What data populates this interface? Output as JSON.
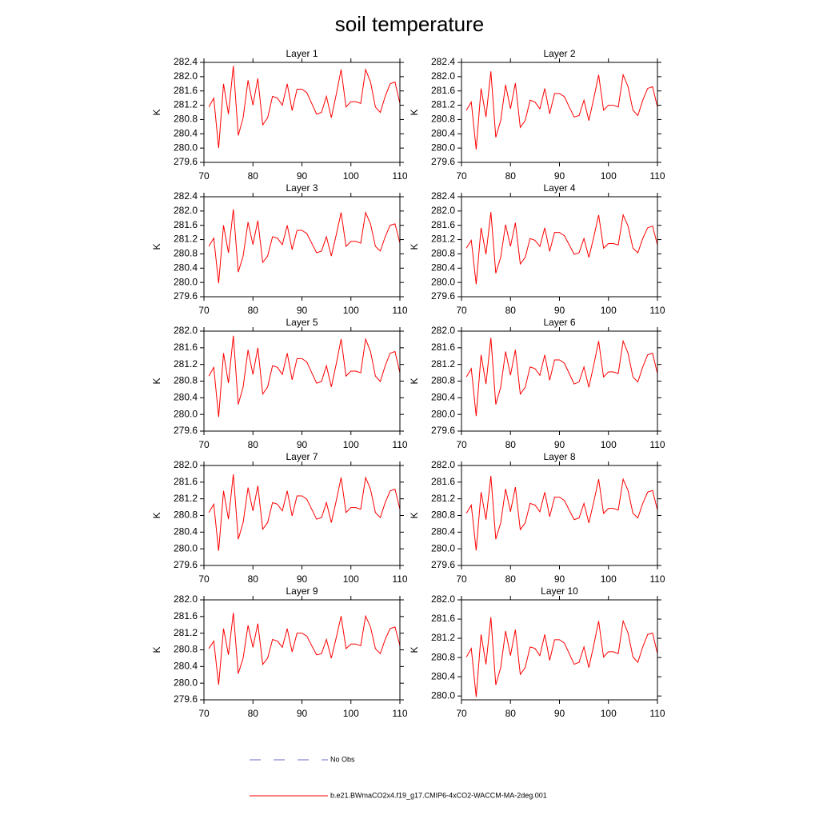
{
  "title": "soil temperature",
  "legend": [
    {
      "label": "No Obs",
      "color": "#6a6acd",
      "dashed": true
    },
    {
      "label": "b.e21.BWmaCO2x4.f19_g17.CMIP6-4xCO2-WACCM-MA-2deg.001",
      "color": "#ff0000",
      "dashed": false
    }
  ],
  "chart_data": [
    {
      "type": "line",
      "title": "Layer 1",
      "ylabel": "K",
      "x": [
        71,
        72,
        73,
        74,
        75,
        76,
        77,
        78,
        79,
        80,
        81,
        82,
        83,
        84,
        85,
        86,
        87,
        88,
        89,
        90,
        91,
        92,
        93,
        94,
        95,
        96,
        97,
        98,
        99,
        100,
        101,
        102,
        103,
        104,
        105,
        106,
        107,
        108,
        109,
        110
      ],
      "series": [
        {
          "color": "#ff0000",
          "values": [
            281.15,
            281.4,
            280.0,
            281.8,
            280.95,
            282.3,
            280.35,
            280.85,
            281.9,
            281.2,
            281.95,
            280.65,
            280.85,
            281.45,
            281.4,
            281.2,
            281.8,
            281.05,
            281.65,
            281.65,
            281.55,
            281.25,
            280.95,
            281.0,
            281.45,
            280.85,
            281.5,
            282.2,
            281.15,
            281.3,
            281.3,
            281.25,
            282.2,
            281.85,
            281.15,
            281.0,
            281.45,
            281.8,
            281.85,
            281.25
          ]
        }
      ],
      "xlim": [
        70,
        110
      ],
      "xticks": [
        70,
        80,
        90,
        100,
        110
      ],
      "ylim": [
        279.6,
        282.4
      ],
      "yticks": [
        279.6,
        {
          "value": 280,
          "label": "280.0"
        },
        280.4,
        280.8,
        281.2,
        281.6,
        {
          "value": 282,
          "label": "282.0"
        },
        282.4
      ]
    },
    {
      "type": "line",
      "title": "Layer 2",
      "ylabel": "K",
      "x": [
        71,
        72,
        73,
        74,
        75,
        76,
        77,
        78,
        79,
        80,
        81,
        82,
        83,
        84,
        85,
        86,
        87,
        88,
        89,
        90,
        91,
        92,
        93,
        94,
        95,
        96,
        97,
        98,
        99,
        100,
        101,
        102,
        103,
        104,
        105,
        106,
        107,
        108,
        109,
        110
      ],
      "series": [
        {
          "color": "#ff0000",
          "values": [
            281.06,
            281.29,
            279.96,
            281.67,
            280.87,
            282.15,
            280.3,
            280.77,
            281.77,
            281.1,
            281.82,
            280.58,
            280.77,
            281.34,
            281.29,
            281.1,
            281.67,
            280.96,
            281.53,
            281.53,
            281.44,
            281.15,
            280.87,
            280.91,
            281.34,
            280.77,
            281.39,
            282.05,
            281.06,
            281.2,
            281.2,
            281.15,
            282.05,
            281.72,
            281.06,
            280.91,
            281.34,
            281.67,
            281.72,
            281.15
          ]
        }
      ],
      "xlim": [
        70,
        110
      ],
      "xticks": [
        70,
        80,
        90,
        100,
        110
      ],
      "ylim": [
        279.6,
        282.4
      ],
      "yticks": [
        279.6,
        {
          "value": 280,
          "label": "280.0"
        },
        280.4,
        280.8,
        281.2,
        281.6,
        {
          "value": 282,
          "label": "282.0"
        },
        282.4
      ]
    },
    {
      "type": "line",
      "title": "Layer 3",
      "ylabel": "K",
      "x": [
        71,
        72,
        73,
        74,
        75,
        76,
        77,
        78,
        79,
        80,
        81,
        82,
        83,
        84,
        85,
        86,
        87,
        88,
        89,
        90,
        91,
        92,
        93,
        94,
        95,
        96,
        97,
        98,
        99,
        100,
        101,
        102,
        103,
        104,
        105,
        106,
        107,
        108,
        109,
        110
      ],
      "series": [
        {
          "color": "#ff0000",
          "values": [
            281.01,
            281.24,
            279.98,
            281.6,
            280.83,
            282.05,
            280.29,
            280.74,
            281.69,
            281.06,
            281.73,
            280.56,
            280.74,
            281.28,
            281.24,
            281.06,
            281.6,
            280.92,
            281.46,
            281.46,
            281.37,
            281.1,
            280.83,
            280.88,
            281.28,
            280.74,
            281.33,
            281.96,
            281.01,
            281.15,
            281.15,
            281.1,
            281.96,
            281.64,
            281.01,
            280.88,
            281.28,
            281.6,
            281.64,
            281.1
          ]
        }
      ],
      "xlim": [
        70,
        110
      ],
      "xticks": [
        70,
        80,
        90,
        100,
        110
      ],
      "ylim": [
        279.6,
        282.4
      ],
      "yticks": [
        279.6,
        {
          "value": 280,
          "label": "280.0"
        },
        280.4,
        280.8,
        281.2,
        281.6,
        {
          "value": 282,
          "label": "282.0"
        },
        282.4
      ]
    },
    {
      "type": "line",
      "title": "Layer 4",
      "ylabel": "K",
      "x": [
        71,
        72,
        73,
        74,
        75,
        76,
        77,
        78,
        79,
        80,
        81,
        82,
        83,
        84,
        85,
        86,
        87,
        88,
        89,
        90,
        91,
        92,
        93,
        94,
        95,
        96,
        97,
        98,
        99,
        100,
        101,
        102,
        103,
        104,
        105,
        106,
        107,
        108,
        109,
        110
      ],
      "series": [
        {
          "color": "#ff0000",
          "values": [
            280.96,
            281.18,
            279.95,
            281.53,
            280.79,
            281.97,
            280.26,
            280.7,
            281.62,
            281.01,
            281.67,
            280.52,
            280.7,
            281.23,
            281.18,
            281.01,
            281.53,
            280.87,
            281.4,
            281.4,
            281.31,
            281.05,
            280.79,
            280.83,
            281.23,
            280.7,
            281.27,
            281.89,
            280.96,
            281.09,
            281.09,
            281.05,
            281.89,
            281.58,
            280.96,
            280.83,
            281.23,
            281.53,
            281.58,
            281.05
          ]
        }
      ],
      "xlim": [
        70,
        110
      ],
      "xticks": [
        70,
        80,
        90,
        100,
        110
      ],
      "ylim": [
        279.6,
        282.4
      ],
      "yticks": [
        279.6,
        {
          "value": 280,
          "label": "280.0"
        },
        280.4,
        280.8,
        281.2,
        281.6,
        {
          "value": 282,
          "label": "282.0"
        },
        282.4
      ]
    },
    {
      "type": "line",
      "title": "Layer 5",
      "ylabel": "K",
      "x": [
        71,
        72,
        73,
        74,
        75,
        76,
        77,
        78,
        79,
        80,
        81,
        82,
        83,
        84,
        85,
        86,
        87,
        88,
        89,
        90,
        91,
        92,
        93,
        94,
        95,
        96,
        97,
        98,
        99,
        100,
        101,
        102,
        103,
        104,
        105,
        106,
        107,
        108,
        109,
        110
      ],
      "series": [
        {
          "color": "#ff0000",
          "values": [
            280.92,
            281.13,
            279.94,
            281.47,
            280.75,
            281.89,
            280.24,
            280.66,
            281.55,
            280.96,
            281.6,
            280.49,
            280.66,
            281.17,
            281.13,
            280.96,
            281.47,
            280.83,
            281.34,
            281.34,
            281.26,
            281.0,
            280.75,
            280.79,
            281.17,
            280.66,
            281.21,
            281.81,
            280.92,
            281.04,
            281.04,
            281.0,
            281.81,
            281.51,
            280.92,
            280.79,
            281.17,
            281.47,
            281.51,
            281.0
          ]
        }
      ],
      "xlim": [
        70,
        110
      ],
      "xticks": [
        70,
        80,
        90,
        100,
        110
      ],
      "ylim": [
        279.6,
        282.0
      ],
      "yticks": [
        279.6,
        {
          "value": 280,
          "label": "280.0"
        },
        280.4,
        280.8,
        281.2,
        281.6,
        {
          "value": 282,
          "label": "282.0"
        }
      ]
    },
    {
      "type": "line",
      "title": "Layer 6",
      "ylabel": "K",
      "x": [
        71,
        72,
        73,
        74,
        75,
        76,
        77,
        78,
        79,
        80,
        81,
        82,
        83,
        84,
        85,
        86,
        87,
        88,
        89,
        90,
        91,
        92,
        93,
        94,
        95,
        96,
        97,
        98,
        99,
        100,
        101,
        102,
        103,
        104,
        105,
        106,
        107,
        108,
        109,
        110
      ],
      "series": [
        {
          "color": "#ff0000",
          "values": [
            280.9,
            281.1,
            279.96,
            281.43,
            280.73,
            281.84,
            280.24,
            280.65,
            281.51,
            280.94,
            281.55,
            280.49,
            280.65,
            281.14,
            281.1,
            280.94,
            281.43,
            280.82,
            281.31,
            281.31,
            281.23,
            280.98,
            280.73,
            280.78,
            281.14,
            280.65,
            281.19,
            281.76,
            280.9,
            281.02,
            281.02,
            280.98,
            281.76,
            281.47,
            280.9,
            280.78,
            281.14,
            281.43,
            281.47,
            280.98
          ]
        }
      ],
      "xlim": [
        70,
        110
      ],
      "xticks": [
        70,
        80,
        90,
        100,
        110
      ],
      "ylim": [
        279.6,
        282.0
      ],
      "yticks": [
        279.6,
        {
          "value": 280,
          "label": "280.0"
        },
        280.4,
        280.8,
        281.2,
        281.6,
        {
          "value": 282,
          "label": "282.0"
        }
      ]
    },
    {
      "type": "line",
      "title": "Layer 7",
      "ylabel": "K",
      "x": [
        71,
        72,
        73,
        74,
        75,
        76,
        77,
        78,
        79,
        80,
        81,
        82,
        83,
        84,
        85,
        86,
        87,
        88,
        89,
        90,
        91,
        92,
        93,
        94,
        95,
        96,
        97,
        98,
        99,
        100,
        101,
        102,
        103,
        104,
        105,
        106,
        107,
        108,
        109,
        110
      ],
      "series": [
        {
          "color": "#ff0000",
          "values": [
            280.87,
            281.07,
            279.95,
            281.39,
            280.71,
            281.79,
            280.23,
            280.63,
            281.47,
            280.91,
            281.51,
            280.47,
            280.63,
            281.11,
            281.07,
            280.91,
            281.39,
            280.79,
            281.27,
            281.27,
            281.19,
            280.95,
            280.71,
            280.75,
            281.11,
            280.63,
            281.15,
            281.71,
            280.87,
            280.99,
            280.99,
            280.95,
            281.71,
            281.43,
            280.87,
            280.75,
            281.11,
            281.39,
            281.43,
            280.95
          ]
        }
      ],
      "xlim": [
        70,
        110
      ],
      "xticks": [
        70,
        80,
        90,
        100,
        110
      ],
      "ylim": [
        279.6,
        282.0
      ],
      "yticks": [
        279.6,
        {
          "value": 280,
          "label": "280.0"
        },
        280.4,
        280.8,
        281.2,
        281.6,
        {
          "value": 282,
          "label": "282.0"
        }
      ]
    },
    {
      "type": "line",
      "title": "Layer 8",
      "ylabel": "K",
      "x": [
        71,
        72,
        73,
        74,
        75,
        76,
        77,
        78,
        79,
        80,
        81,
        82,
        83,
        84,
        85,
        86,
        87,
        88,
        89,
        90,
        91,
        92,
        93,
        94,
        95,
        96,
        97,
        98,
        99,
        100,
        101,
        102,
        103,
        104,
        105,
        106,
        107,
        108,
        109,
        110
      ],
      "series": [
        {
          "color": "#ff0000",
          "values": [
            280.85,
            281.05,
            279.96,
            281.36,
            280.7,
            281.75,
            280.23,
            280.62,
            281.44,
            280.89,
            281.48,
            280.46,
            280.62,
            281.09,
            281.05,
            280.89,
            281.36,
            280.77,
            281.24,
            281.24,
            281.16,
            280.93,
            280.7,
            280.74,
            281.09,
            280.62,
            281.13,
            281.67,
            280.85,
            280.97,
            280.97,
            280.93,
            281.67,
            281.4,
            280.85,
            280.74,
            281.09,
            281.36,
            281.4,
            280.93
          ]
        }
      ],
      "xlim": [
        70,
        110
      ],
      "xticks": [
        70,
        80,
        90,
        100,
        110
      ],
      "ylim": [
        279.6,
        282.0
      ],
      "yticks": [
        279.6,
        {
          "value": 280,
          "label": "280.0"
        },
        280.4,
        280.8,
        281.2,
        281.6,
        {
          "value": 282,
          "label": "282.0"
        }
      ]
    },
    {
      "type": "line",
      "title": "Layer 9",
      "ylabel": "K",
      "x": [
        71,
        72,
        73,
        74,
        75,
        76,
        77,
        78,
        79,
        80,
        81,
        82,
        83,
        84,
        85,
        86,
        87,
        88,
        89,
        90,
        91,
        92,
        93,
        94,
        95,
        96,
        97,
        98,
        99,
        100,
        101,
        102,
        103,
        104,
        105,
        106,
        107,
        108,
        109,
        110
      ],
      "series": [
        {
          "color": "#ff0000",
          "values": [
            280.83,
            281.01,
            279.96,
            281.31,
            280.68,
            281.69,
            280.23,
            280.6,
            281.39,
            280.86,
            281.43,
            280.45,
            280.6,
            281.05,
            281.01,
            280.86,
            281.31,
            280.75,
            281.2,
            281.2,
            281.13,
            280.9,
            280.68,
            280.71,
            281.05,
            280.6,
            281.09,
            281.61,
            280.83,
            280.94,
            280.94,
            280.9,
            281.61,
            281.35,
            280.83,
            280.71,
            281.05,
            281.31,
            281.35,
            280.9
          ]
        }
      ],
      "xlim": [
        70,
        110
      ],
      "xticks": [
        70,
        80,
        90,
        100,
        110
      ],
      "ylim": [
        279.6,
        282.0
      ],
      "yticks": [
        279.6,
        {
          "value": 280,
          "label": "280.0"
        },
        280.4,
        280.8,
        281.2,
        281.6,
        {
          "value": 282,
          "label": "282.0"
        }
      ]
    },
    {
      "type": "line",
      "title": "Layer 10",
      "ylabel": "K",
      "x": [
        71,
        72,
        73,
        74,
        75,
        76,
        77,
        78,
        79,
        80,
        81,
        82,
        83,
        84,
        85,
        86,
        87,
        88,
        89,
        90,
        91,
        92,
        93,
        94,
        95,
        96,
        97,
        98,
        99,
        100,
        101,
        102,
        103,
        104,
        105,
        106,
        107,
        108,
        109,
        110
      ],
      "series": [
        {
          "color": "#ff0000",
          "values": [
            280.81,
            280.99,
            279.98,
            281.28,
            280.66,
            281.64,
            280.23,
            280.59,
            281.35,
            280.84,
            281.38,
            280.45,
            280.59,
            281.02,
            280.99,
            280.84,
            281.28,
            280.74,
            281.17,
            281.17,
            281.1,
            280.88,
            280.66,
            280.7,
            281.02,
            280.59,
            281.06,
            281.56,
            280.81,
            280.92,
            280.92,
            280.88,
            281.56,
            281.31,
            280.81,
            280.7,
            281.02,
            281.28,
            281.31,
            280.88
          ]
        }
      ],
      "xlim": [
        70,
        110
      ],
      "xticks": [
        70,
        80,
        90,
        100,
        110
      ],
      "ylim": [
        279.92,
        282.0
      ],
      "yticks": [
        {
          "value": 280,
          "label": "280.0"
        },
        280.4,
        280.8,
        281.2,
        281.6,
        {
          "value": 282,
          "label": "282.0"
        }
      ]
    }
  ]
}
